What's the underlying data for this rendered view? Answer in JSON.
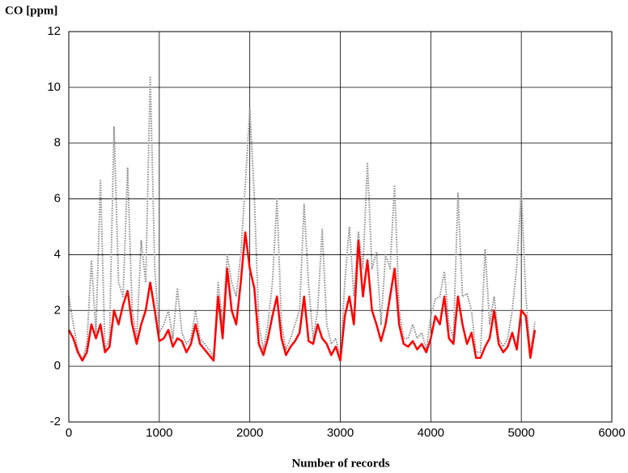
{
  "chart_data": {
    "type": "line",
    "y_label": "CO [ppm]",
    "x_label": "Number of records",
    "xlim": [
      0,
      6000
    ],
    "xticks": [
      0,
      1000,
      2000,
      3000,
      4000,
      5000,
      6000
    ],
    "ylim": [
      -2,
      12
    ],
    "yticks": [
      -2,
      0,
      2,
      4,
      6,
      8,
      10,
      12
    ],
    "grid": true,
    "x": [
      0,
      50,
      100,
      150,
      200,
      250,
      300,
      350,
      400,
      450,
      500,
      550,
      600,
      650,
      700,
      750,
      800,
      850,
      900,
      950,
      1000,
      1050,
      1100,
      1150,
      1200,
      1250,
      1300,
      1350,
      1400,
      1450,
      1500,
      1550,
      1600,
      1650,
      1700,
      1750,
      1800,
      1850,
      1900,
      1950,
      2000,
      2050,
      2100,
      2150,
      2200,
      2250,
      2300,
      2350,
      2400,
      2450,
      2500,
      2550,
      2600,
      2650,
      2700,
      2750,
      2800,
      2850,
      2900,
      2950,
      3000,
      3050,
      3100,
      3150,
      3200,
      3250,
      3300,
      3350,
      3400,
      3450,
      3500,
      3550,
      3600,
      3650,
      3700,
      3750,
      3800,
      3850,
      3900,
      3950,
      4000,
      4050,
      4100,
      4150,
      4200,
      4250,
      4300,
      4350,
      4400,
      4450,
      4500,
      4550,
      4600,
      4650,
      4700,
      4750,
      4800,
      4850,
      4900,
      4950,
      5000,
      5050,
      5100,
      5150
    ],
    "series": [
      {
        "color": "#8c8c8c",
        "values": [
          2.5,
          1.5,
          0.6,
          0.2,
          0.8,
          3.8,
          1.2,
          6.7,
          0.6,
          1.0,
          8.6,
          3.0,
          2.5,
          7.1,
          2.0,
          1.0,
          4.5,
          3.0,
          10.4,
          3.5,
          1.2,
          1.5,
          2.0,
          1.0,
          2.8,
          1.2,
          0.8,
          1.0,
          2.0,
          1.0,
          0.8,
          0.6,
          0.3,
          3.0,
          1.5,
          4.0,
          3.0,
          2.5,
          4.0,
          6.5,
          9.2,
          6.1,
          1.5,
          0.6,
          1.5,
          3.0,
          6.0,
          1.5,
          0.6,
          1.0,
          1.5,
          2.0,
          5.8,
          2.9,
          1.0,
          2.0,
          4.9,
          1.5,
          0.8,
          1.0,
          0.3,
          3.0,
          5.0,
          2.5,
          4.8,
          3.5,
          7.3,
          3.5,
          4.1,
          1.5,
          4.0,
          3.5,
          6.5,
          2.0,
          1.0,
          1.0,
          1.5,
          1.0,
          1.2,
          0.6,
          1.8,
          2.4,
          2.5,
          3.4,
          1.5,
          1.0,
          6.2,
          2.5,
          2.6,
          2.0,
          0.5,
          0.5,
          4.2,
          1.5,
          2.5,
          1.0,
          0.7,
          1.0,
          2.0,
          3.6,
          6.3,
          2.5,
          0.5,
          1.6
        ]
      },
      {
        "color": "#ff0000",
        "values": [
          1.3,
          1.0,
          0.5,
          0.2,
          0.5,
          1.5,
          1.0,
          1.5,
          0.5,
          0.7,
          2.0,
          1.5,
          2.2,
          2.7,
          1.5,
          0.8,
          1.5,
          2.0,
          3.0,
          2.0,
          0.9,
          1.0,
          1.3,
          0.7,
          1.0,
          0.9,
          0.5,
          0.8,
          1.5,
          0.8,
          0.6,
          0.4,
          0.2,
          2.5,
          1.0,
          3.5,
          2.0,
          1.5,
          3.0,
          4.8,
          3.5,
          2.8,
          0.8,
          0.4,
          1.0,
          1.8,
          2.5,
          1.0,
          0.4,
          0.7,
          0.9,
          1.2,
          2.5,
          0.9,
          0.8,
          1.5,
          1.0,
          0.8,
          0.4,
          0.7,
          0.2,
          1.8,
          2.5,
          1.5,
          4.5,
          2.5,
          3.8,
          2.0,
          1.5,
          0.9,
          1.5,
          2.5,
          3.5,
          1.5,
          0.8,
          0.7,
          0.9,
          0.6,
          0.8,
          0.5,
          1.0,
          1.8,
          1.5,
          2.5,
          1.0,
          0.8,
          2.5,
          1.5,
          0.8,
          1.2,
          0.3,
          0.3,
          0.7,
          1.0,
          2.0,
          0.8,
          0.5,
          0.7,
          1.2,
          0.6,
          2.0,
          1.8,
          0.3,
          1.3
        ]
      }
    ]
  }
}
